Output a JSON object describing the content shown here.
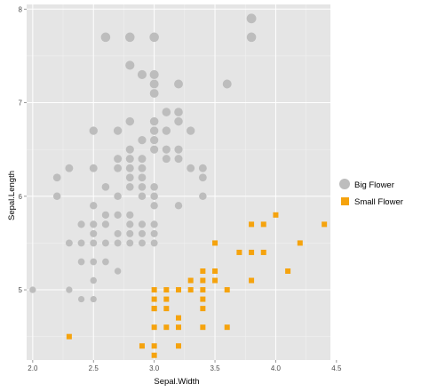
{
  "chart_data": {
    "type": "scatter",
    "xlabel": "Sepal.Width",
    "ylabel": "Sepal.Length",
    "xlim": [
      1.95,
      4.45
    ],
    "ylim": [
      4.25,
      8.05
    ],
    "x_ticks": [
      "2.0",
      "2.5",
      "3.0",
      "3.5",
      "4.0",
      "4.5"
    ],
    "x_tick_values": [
      2.0,
      2.5,
      3.0,
      3.5,
      4.0,
      4.5
    ],
    "y_ticks": [
      "5",
      "6",
      "7",
      "8"
    ],
    "y_tick_values": [
      5,
      6,
      7,
      8
    ],
    "grid": true,
    "panel_background": "#e5e5e5",
    "legend_position": "right",
    "series": [
      {
        "name": "Big Flower",
        "shape": "circle",
        "color": "#bdbdbd",
        "points": [
          [
            2.6,
            7.7
          ],
          [
            2.8,
            7.7
          ],
          [
            3.0,
            7.7
          ],
          [
            3.8,
            7.9
          ],
          [
            3.8,
            7.7
          ],
          [
            2.8,
            7.4
          ],
          [
            3.0,
            7.3
          ],
          [
            2.9,
            7.3
          ],
          [
            3.0,
            7.2
          ],
          [
            3.2,
            7.2
          ],
          [
            3.6,
            7.2
          ],
          [
            3.0,
            7.1
          ],
          [
            3.2,
            6.9
          ],
          [
            3.1,
            6.9
          ],
          [
            3.0,
            6.8
          ],
          [
            2.8,
            6.8
          ],
          [
            3.2,
            6.8
          ],
          [
            2.7,
            6.7
          ],
          [
            3.1,
            6.7
          ],
          [
            3.3,
            6.7
          ],
          [
            3.0,
            6.7
          ],
          [
            2.5,
            6.7
          ],
          [
            2.9,
            6.6
          ],
          [
            3.0,
            6.6
          ],
          [
            3.1,
            6.5
          ],
          [
            2.8,
            6.5
          ],
          [
            3.0,
            6.5
          ],
          [
            3.2,
            6.5
          ],
          [
            3.2,
            6.4
          ],
          [
            2.7,
            6.4
          ],
          [
            2.8,
            6.4
          ],
          [
            3.1,
            6.4
          ],
          [
            2.9,
            6.4
          ],
          [
            3.3,
            6.3
          ],
          [
            2.5,
            6.3
          ],
          [
            2.9,
            6.3
          ],
          [
            2.3,
            6.3
          ],
          [
            2.7,
            6.3
          ],
          [
            2.8,
            6.3
          ],
          [
            3.4,
            6.3
          ],
          [
            2.2,
            6.2
          ],
          [
            2.8,
            6.2
          ],
          [
            3.4,
            6.2
          ],
          [
            2.9,
            6.2
          ],
          [
            2.8,
            6.1
          ],
          [
            2.6,
            6.1
          ],
          [
            3.0,
            6.1
          ],
          [
            2.9,
            6.1
          ],
          [
            2.2,
            6.0
          ],
          [
            2.9,
            6.0
          ],
          [
            3.0,
            6.0
          ],
          [
            2.7,
            6.0
          ],
          [
            3.4,
            6.0
          ],
          [
            2.5,
            5.9
          ],
          [
            3.0,
            5.9
          ],
          [
            3.2,
            5.9
          ],
          [
            2.7,
            5.8
          ],
          [
            2.8,
            5.8
          ],
          [
            2.6,
            5.8
          ],
          [
            2.4,
            5.7
          ],
          [
            2.8,
            5.7
          ],
          [
            2.6,
            5.7
          ],
          [
            2.5,
            5.7
          ],
          [
            2.9,
            5.7
          ],
          [
            3.0,
            5.7
          ],
          [
            2.9,
            5.6
          ],
          [
            3.0,
            5.6
          ],
          [
            2.5,
            5.6
          ],
          [
            2.7,
            5.6
          ],
          [
            2.8,
            5.6
          ],
          [
            2.3,
            5.5
          ],
          [
            2.5,
            5.5
          ],
          [
            2.4,
            5.5
          ],
          [
            2.6,
            5.5
          ],
          [
            2.7,
            5.5
          ],
          [
            2.8,
            5.5
          ],
          [
            3.0,
            5.5
          ],
          [
            2.9,
            5.5
          ],
          [
            2.4,
            5.3
          ],
          [
            2.5,
            5.3
          ],
          [
            2.6,
            5.3
          ],
          [
            2.7,
            5.2
          ],
          [
            2.5,
            5.1
          ],
          [
            2.0,
            5.0
          ],
          [
            2.3,
            5.0
          ],
          [
            2.4,
            4.9
          ],
          [
            2.5,
            4.9
          ]
        ]
      },
      {
        "name": "Small Flower",
        "shape": "square",
        "color": "#f5a30e",
        "points": [
          [
            4.4,
            5.7
          ],
          [
            4.0,
            5.8
          ],
          [
            3.9,
            5.7
          ],
          [
            4.2,
            5.5
          ],
          [
            4.1,
            5.2
          ],
          [
            3.7,
            5.4
          ],
          [
            3.5,
            5.5
          ],
          [
            3.8,
            5.7
          ],
          [
            3.8,
            5.4
          ],
          [
            3.8,
            5.1
          ],
          [
            3.9,
            5.4
          ],
          [
            3.5,
            5.2
          ],
          [
            3.4,
            5.2
          ],
          [
            3.5,
            5.1
          ],
          [
            3.4,
            5.0
          ],
          [
            3.4,
            5.1
          ],
          [
            3.3,
            5.0
          ],
          [
            3.2,
            5.0
          ],
          [
            3.4,
            4.8
          ],
          [
            3.3,
            5.1
          ],
          [
            3.6,
            5.0
          ],
          [
            3.0,
            5.0
          ],
          [
            3.1,
            4.9
          ],
          [
            3.1,
            4.6
          ],
          [
            3.2,
            4.7
          ],
          [
            3.0,
            4.8
          ],
          [
            3.1,
            5.0
          ],
          [
            3.0,
            4.9
          ],
          [
            3.0,
            4.8
          ],
          [
            3.2,
            4.6
          ],
          [
            3.6,
            4.6
          ],
          [
            3.4,
            4.6
          ],
          [
            3.2,
            4.4
          ],
          [
            3.0,
            4.4
          ],
          [
            2.9,
            4.4
          ],
          [
            3.0,
            4.3
          ],
          [
            2.3,
            4.5
          ],
          [
            3.0,
            4.6
          ],
          [
            3.1,
            4.8
          ],
          [
            3.4,
            4.9
          ]
        ]
      }
    ]
  }
}
